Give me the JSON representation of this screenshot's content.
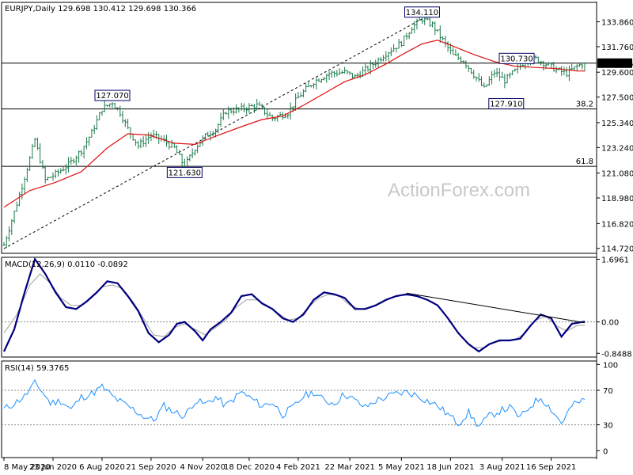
{
  "chart_data": [
    {
      "type": "candlestick",
      "panel": "price",
      "header": "EURJPY,Daily  129.698 130.412 129.698 130.366",
      "ohlc": {
        "open": 129.698,
        "high": 130.412,
        "low": 129.698,
        "close": 130.366
      },
      "ylim": [
        114.3,
        135.5
      ],
      "y_ticks": [
        "133.860",
        "131.760",
        "129.600",
        "127.500",
        "125.340",
        "123.240",
        "121.080",
        "118.980",
        "116.820",
        "114.720"
      ],
      "y_tick_values": [
        133.86,
        131.76,
        129.6,
        127.5,
        125.34,
        123.24,
        121.08,
        118.98,
        116.82,
        114.72
      ],
      "last_price_label": "130.366",
      "last_price": 130.366,
      "price_path": [
        [
          0,
          115.0
        ],
        [
          5,
          118.5
        ],
        [
          9,
          121.5
        ],
        [
          12,
          123.9
        ],
        [
          16,
          120.5
        ],
        [
          20,
          121.0
        ],
        [
          25,
          121.8
        ],
        [
          30,
          123.0
        ],
        [
          34,
          124.5
        ],
        [
          38,
          126.5
        ],
        [
          42,
          127.07
        ],
        [
          45,
          126.2
        ],
        [
          48,
          124.8
        ],
        [
          52,
          123.4
        ],
        [
          57,
          124.3
        ],
        [
          62,
          123.8
        ],
        [
          66,
          123.2
        ],
        [
          70,
          121.63
        ],
        [
          74,
          123.2
        ],
        [
          78,
          124.2
        ],
        [
          82,
          124.8
        ],
        [
          86,
          126.3
        ],
        [
          92,
          126.5
        ],
        [
          98,
          126.8
        ],
        [
          104,
          125.7
        ],
        [
          110,
          126.2
        ],
        [
          114,
          127.5
        ],
        [
          120,
          128.8
        ],
        [
          126,
          129.5
        ],
        [
          132,
          129.6
        ],
        [
          136,
          129.2
        ],
        [
          142,
          130.1
        ],
        [
          148,
          131.2
        ],
        [
          154,
          132.1
        ],
        [
          158,
          133.4
        ],
        [
          162,
          134.11
        ],
        [
          166,
          133.6
        ],
        [
          170,
          132.3
        ],
        [
          174,
          131.0
        ],
        [
          178,
          130.6
        ],
        [
          182,
          129.4
        ],
        [
          186,
          128.2
        ],
        [
          190,
          129.6
        ],
        [
          194,
          128.9
        ],
        [
          198,
          129.7
        ],
        [
          202,
          130.6
        ],
        [
          206,
          130.73
        ],
        [
          210,
          130.3
        ],
        [
          214,
          129.8
        ],
        [
          218,
          129.5
        ],
        [
          222,
          130.1
        ],
        [
          225,
          130.4
        ]
      ],
      "ma_label": "",
      "moving_average": [
        [
          0,
          118.2
        ],
        [
          10,
          119.6
        ],
        [
          20,
          120.3
        ],
        [
          30,
          121.2
        ],
        [
          40,
          123.2
        ],
        [
          48,
          124.4
        ],
        [
          56,
          124.3
        ],
        [
          66,
          123.6
        ],
        [
          74,
          123.5
        ],
        [
          82,
          124.2
        ],
        [
          92,
          125.0
        ],
        [
          100,
          125.6
        ],
        [
          108,
          125.9
        ],
        [
          116,
          126.8
        ],
        [
          124,
          127.8
        ],
        [
          132,
          128.8
        ],
        [
          140,
          129.4
        ],
        [
          148,
          130.3
        ],
        [
          156,
          131.3
        ],
        [
          162,
          132.0
        ],
        [
          168,
          132.3
        ],
        [
          174,
          131.8
        ],
        [
          182,
          131.1
        ],
        [
          190,
          130.5
        ],
        [
          198,
          130.1
        ],
        [
          206,
          130.0
        ],
        [
          214,
          129.9
        ],
        [
          222,
          129.7
        ],
        [
          225,
          129.7
        ]
      ],
      "x_ticks": [
        "8 May 2020",
        "23 Jun 2020",
        "6 Aug 2020",
        "21 Sep 2020",
        "4 Nov 2020",
        "18 Dec 2020",
        "4 Feb 2021",
        "22 Mar 2021",
        "5 May 2021",
        "18 Jun 2021",
        "3 Aug 2021",
        "16 Sep 2021"
      ],
      "x_tick_index": [
        0,
        19,
        38,
        57,
        77,
        95,
        114,
        134,
        154,
        173,
        193,
        212
      ],
      "annotations": [
        {
          "label": "134.110",
          "price": 134.11,
          "index": 162
        },
        {
          "label": "127.070",
          "price": 127.07,
          "index": 42
        },
        {
          "label": "121.630",
          "price": 121.63,
          "index": 70
        },
        {
          "label": "130.730",
          "price": 130.73,
          "index": 206
        },
        {
          "label": "127.910",
          "price": 127.91,
          "index": 186
        }
      ],
      "horizontal_levels": [
        {
          "label": "",
          "price": 130.366
        },
        {
          "label": "38.2",
          "price": 126.5
        },
        {
          "label": "61.8",
          "price": 121.65
        }
      ],
      "trendline": {
        "from": [
          0,
          114.7
        ],
        "to": [
          162,
          134.11
        ],
        "style": "dashed"
      },
      "watermark": "ActionForex.com"
    },
    {
      "type": "line",
      "panel": "macd",
      "header": "MACD(12,26,9) 0.0110 -0.0892",
      "macd_value": 0.011,
      "signal_value": -0.0892,
      "ylim": [
        -0.95,
        1.75
      ],
      "y_ticks": [
        "1.6961",
        "0.00",
        "-0.8488"
      ],
      "y_tick_values": [
        1.6961,
        0.0,
        -0.8488
      ],
      "zero_label": "0.00",
      "macd": [
        [
          0,
          -0.8
        ],
        [
          4,
          -0.2
        ],
        [
          8,
          0.8
        ],
        [
          12,
          1.7
        ],
        [
          16,
          1.3
        ],
        [
          20,
          0.8
        ],
        [
          24,
          0.4
        ],
        [
          28,
          0.35
        ],
        [
          32,
          0.55
        ],
        [
          36,
          0.8
        ],
        [
          40,
          1.1
        ],
        [
          44,
          1.05
        ],
        [
          48,
          0.7
        ],
        [
          52,
          0.3
        ],
        [
          56,
          -0.3
        ],
        [
          60,
          -0.55
        ],
        [
          64,
          -0.35
        ],
        [
          67,
          -0.05
        ],
        [
          70,
          0.0
        ],
        [
          74,
          -0.25
        ],
        [
          77,
          -0.5
        ],
        [
          80,
          -0.2
        ],
        [
          84,
          0.0
        ],
        [
          88,
          0.25
        ],
        [
          92,
          0.7
        ],
        [
          96,
          0.75
        ],
        [
          100,
          0.5
        ],
        [
          104,
          0.35
        ],
        [
          108,
          0.1
        ],
        [
          112,
          0.0
        ],
        [
          116,
          0.2
        ],
        [
          120,
          0.6
        ],
        [
          124,
          0.8
        ],
        [
          128,
          0.75
        ],
        [
          132,
          0.65
        ],
        [
          136,
          0.35
        ],
        [
          140,
          0.35
        ],
        [
          144,
          0.45
        ],
        [
          148,
          0.6
        ],
        [
          152,
          0.7
        ],
        [
          156,
          0.75
        ],
        [
          160,
          0.7
        ],
        [
          164,
          0.6
        ],
        [
          168,
          0.45
        ],
        [
          172,
          0.1
        ],
        [
          176,
          -0.3
        ],
        [
          180,
          -0.6
        ],
        [
          184,
          -0.8
        ],
        [
          188,
          -0.6
        ],
        [
          192,
          -0.5
        ],
        [
          196,
          -0.5
        ],
        [
          200,
          -0.45
        ],
        [
          204,
          -0.1
        ],
        [
          208,
          0.2
        ],
        [
          212,
          0.1
        ],
        [
          216,
          -0.4
        ],
        [
          220,
          -0.05
        ],
        [
          225,
          0.011
        ]
      ],
      "signal": [
        [
          0,
          -0.3
        ],
        [
          5,
          0.2
        ],
        [
          10,
          1.0
        ],
        [
          14,
          1.3
        ],
        [
          18,
          1.05
        ],
        [
          22,
          0.65
        ],
        [
          26,
          0.45
        ],
        [
          30,
          0.45
        ],
        [
          34,
          0.7
        ],
        [
          38,
          0.95
        ],
        [
          42,
          1.0
        ],
        [
          46,
          0.9
        ],
        [
          50,
          0.55
        ],
        [
          54,
          0.1
        ],
        [
          58,
          -0.35
        ],
        [
          62,
          -0.4
        ],
        [
          66,
          -0.15
        ],
        [
          70,
          -0.05
        ],
        [
          74,
          -0.2
        ],
        [
          78,
          -0.35
        ],
        [
          82,
          -0.15
        ],
        [
          86,
          0.05
        ],
        [
          90,
          0.4
        ],
        [
          94,
          0.6
        ],
        [
          98,
          0.6
        ],
        [
          102,
          0.45
        ],
        [
          106,
          0.25
        ],
        [
          110,
          0.05
        ],
        [
          114,
          0.1
        ],
        [
          118,
          0.4
        ],
        [
          122,
          0.65
        ],
        [
          126,
          0.75
        ],
        [
          130,
          0.7
        ],
        [
          134,
          0.45
        ],
        [
          138,
          0.35
        ],
        [
          142,
          0.4
        ],
        [
          146,
          0.5
        ],
        [
          150,
          0.65
        ],
        [
          154,
          0.72
        ],
        [
          158,
          0.72
        ],
        [
          162,
          0.65
        ],
        [
          166,
          0.55
        ],
        [
          170,
          0.3
        ],
        [
          174,
          -0.1
        ],
        [
          178,
          -0.45
        ],
        [
          182,
          -0.7
        ],
        [
          186,
          -0.7
        ],
        [
          190,
          -0.55
        ],
        [
          194,
          -0.5
        ],
        [
          198,
          -0.48
        ],
        [
          202,
          -0.3
        ],
        [
          206,
          0.05
        ],
        [
          210,
          0.15
        ],
        [
          214,
          -0.1
        ],
        [
          218,
          -0.25
        ],
        [
          222,
          -0.1
        ],
        [
          225,
          -0.0892
        ]
      ],
      "trendline": {
        "from": [
          156,
          0.78
        ],
        "to": [
          225,
          -0.02
        ],
        "style": "solid"
      }
    },
    {
      "type": "line",
      "panel": "rsi",
      "header": "RSI(14) 59.3765",
      "rsi_value": 59.3765,
      "ylim": [
        0,
        100
      ],
      "y_ticks": [
        "100",
        "70",
        "30",
        "0"
      ],
      "y_tick_values": [
        100,
        70,
        30,
        0
      ],
      "levels": [
        70,
        30
      ],
      "rsi": [
        [
          0,
          48
        ],
        [
          4,
          55
        ],
        [
          8,
          63
        ],
        [
          12,
          78
        ],
        [
          14,
          72
        ],
        [
          18,
          55
        ],
        [
          22,
          58
        ],
        [
          26,
          48
        ],
        [
          30,
          62
        ],
        [
          34,
          66
        ],
        [
          38,
          74
        ],
        [
          42,
          63
        ],
        [
          46,
          55
        ],
        [
          50,
          48
        ],
        [
          54,
          40
        ],
        [
          58,
          35
        ],
        [
          62,
          52
        ],
        [
          66,
          45
        ],
        [
          70,
          40
        ],
        [
          74,
          58
        ],
        [
          78,
          54
        ],
        [
          82,
          62
        ],
        [
          86,
          52
        ],
        [
          92,
          68
        ],
        [
          96,
          60
        ],
        [
          100,
          52
        ],
        [
          104,
          56
        ],
        [
          108,
          42
        ],
        [
          112,
          50
        ],
        [
          116,
          63
        ],
        [
          120,
          68
        ],
        [
          124,
          58
        ],
        [
          128,
          55
        ],
        [
          132,
          66
        ],
        [
          136,
          58
        ],
        [
          140,
          50
        ],
        [
          144,
          58
        ],
        [
          148,
          62
        ],
        [
          152,
          66
        ],
        [
          156,
          68
        ],
        [
          160,
          64
        ],
        [
          164,
          58
        ],
        [
          168,
          52
        ],
        [
          172,
          42
        ],
        [
          176,
          32
        ],
        [
          180,
          44
        ],
        [
          184,
          28
        ],
        [
          188,
          40
        ],
        [
          192,
          46
        ],
        [
          196,
          50
        ],
        [
          200,
          38
        ],
        [
          204,
          52
        ],
        [
          208,
          62
        ],
        [
          212,
          48
        ],
        [
          216,
          32
        ],
        [
          220,
          52
        ],
        [
          225,
          59.4
        ]
      ]
    }
  ]
}
